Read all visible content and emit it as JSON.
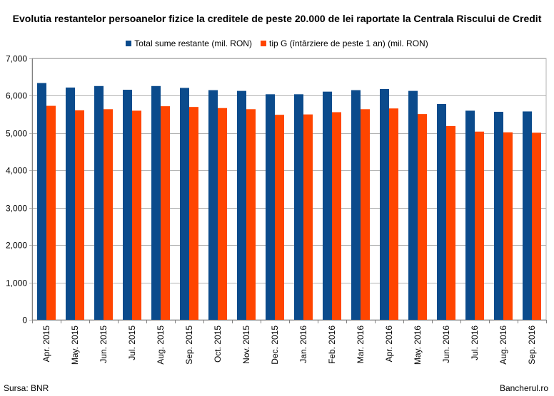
{
  "chart_data": {
    "type": "bar",
    "title": "Evolutia restantelor persoanelor fizice la creditele de peste 20.000 de lei raportate la Centrala Riscului de Credit",
    "categories": [
      "Apr. 2015",
      "May. 2015",
      "Jun. 2015",
      "Jul. 2015",
      "Aug. 2015",
      "Sep. 2015",
      "Oct. 2015",
      "Nov. 2015",
      "Dec. 2015",
      "Jan. 2016",
      "Feb. 2016",
      "Mar. 2016",
      "Apr. 2016",
      "May. 2016",
      "Jun. 2016",
      "Jul. 2016",
      "Aug. 2016",
      "Sep. 2016"
    ],
    "series": [
      {
        "name": "Total sume restante (mil. RON)",
        "color": "#0b4b8c",
        "values": [
          6340,
          6220,
          6260,
          6160,
          6260,
          6210,
          6150,
          6130,
          6040,
          6040,
          6110,
          6150,
          6180,
          6130,
          5780,
          5600,
          5570,
          5580
        ]
      },
      {
        "name": "tip G (întârziere de peste 1 an) (mil. RON)",
        "color": "#ff4500",
        "values": [
          5730,
          5610,
          5640,
          5600,
          5720,
          5700,
          5670,
          5640,
          5490,
          5500,
          5560,
          5640,
          5660,
          5510,
          5190,
          5040,
          5020,
          5010
        ]
      }
    ],
    "yticks": [
      "0",
      "1,000",
      "2,000",
      "3,000",
      "4,000",
      "5,000",
      "6,000",
      "7,000"
    ],
    "ylim": [
      0,
      7000
    ],
    "grid": true,
    "legend_position": "top"
  },
  "footer": {
    "source": "Sursa: BNR",
    "brand": "Bancherul.ro"
  }
}
